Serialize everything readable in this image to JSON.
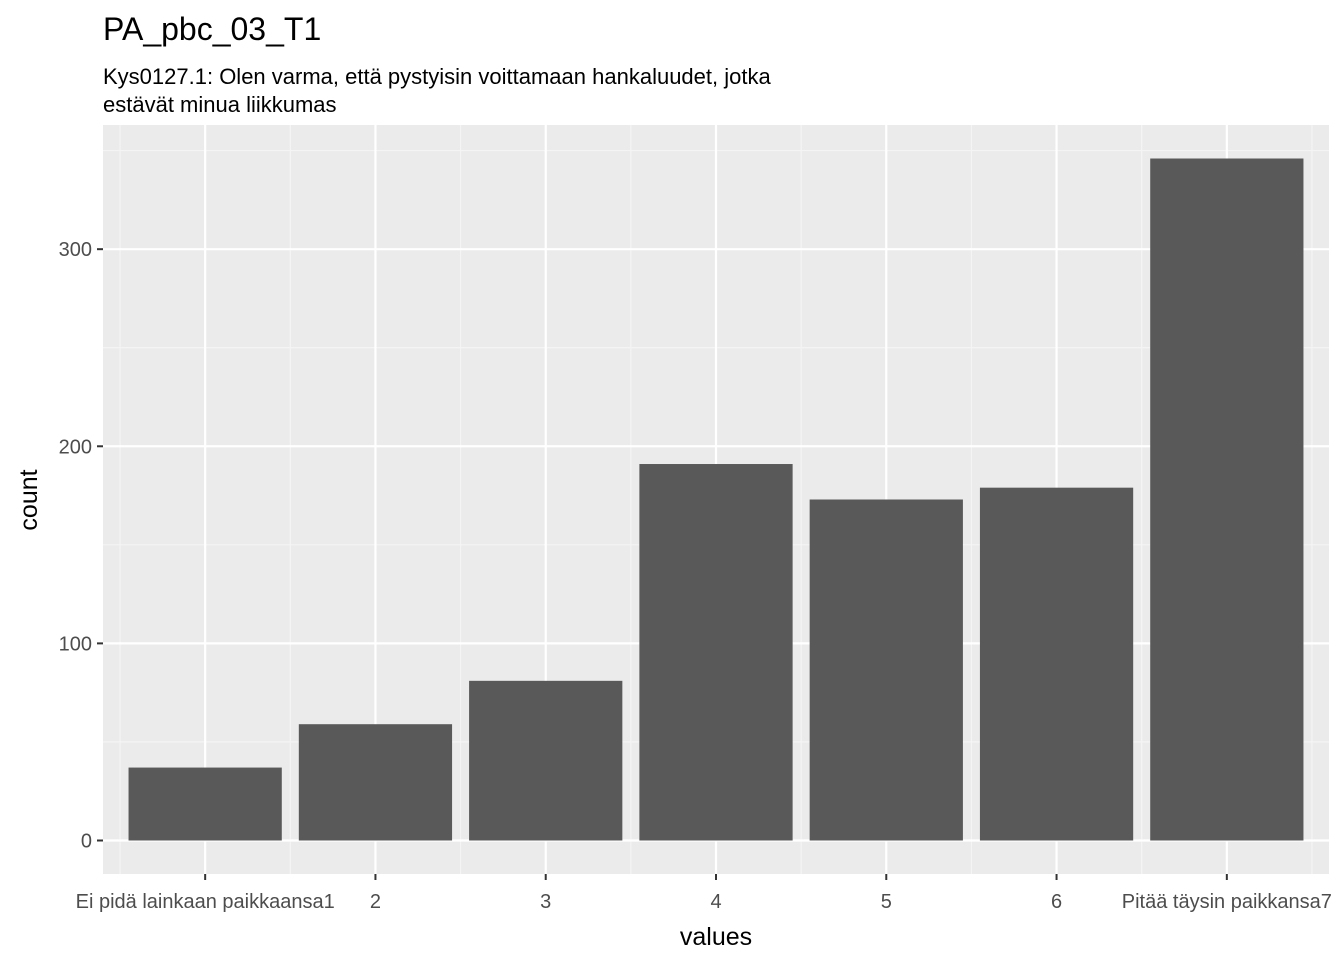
{
  "chart_data": {
    "type": "bar",
    "title": "PA_pbc_03_T1",
    "subtitle_lines": [
      "Kys0127.1: Olen varma, että pystyisin voittamaan hankaluudet, jotka",
      "estävät minua liikkumas"
    ],
    "xlabel": "values",
    "ylabel": "count",
    "categories": [
      "Ei pidä lainkaan paikkaansa1",
      "2",
      "3",
      "4",
      "5",
      "6",
      "Pitää täysin paikkansa7"
    ],
    "values": [
      37,
      59,
      81,
      191,
      173,
      179,
      346
    ],
    "ylim": [
      -17,
      363
    ],
    "y_ticks": [
      0,
      100,
      200,
      300
    ],
    "y_tick_labels": [
      "0",
      "100",
      "200",
      "300"
    ],
    "grid": true,
    "colors": {
      "bar": "#595959",
      "panel": "#ebebeb",
      "grid_major": "#ffffff",
      "grid_minor": "#f5f5f5"
    }
  }
}
